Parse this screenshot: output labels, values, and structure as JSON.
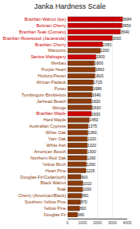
{
  "chart_data": {
    "type": "bar",
    "orientation": "horizontal",
    "title": "Janka Hardness Scale",
    "categories": [
      "Brazilian Walnut (Ipe)",
      "Bolivian Cherry",
      "Brazilian Teak (Cumaru)",
      "Brazilian Rosewood (Jacaranda)",
      "Brazilian Cherry",
      "Mancono",
      "Santos Mahogany",
      "Merbau",
      "Purple Heart",
      "Hickory/Pecan",
      "African Padauk",
      "Purau",
      "Tumbingum Bimblebox",
      "Jarhead Beach",
      "Wenge",
      "Brazilian Maple",
      "Hard Maple",
      "Australian Cypress",
      "White Oak",
      "Yam Oak",
      "White Ash",
      "American Beech",
      "Northern Red Oak",
      "Yellow Birch",
      "Heart Pine",
      "Douglas-Fir/Cedar(soft)",
      "Black Walnut",
      "Teak",
      "Cherry (American/Black)",
      "Southern Yellow Pine",
      "Yellow Pine",
      "Douglas Fir"
    ],
    "values": [
      3684,
      3650,
      3540,
      3000,
      2350,
      2200,
      1900,
      1800,
      1860,
      1820,
      1725,
      1686,
      1640,
      1600,
      1630,
      1600,
      1450,
      1375,
      1360,
      1320,
      1320,
      1300,
      1290,
      1260,
      1225,
      900,
      1010,
      1000,
      950,
      870,
      800,
      660
    ],
    "colors": [
      "#cc0000",
      "#cc0000",
      "#cc0000",
      "#cc0000",
      "#cc0000",
      "#8B3A0A",
      "#cc0000",
      "#8B3A0A",
      "#8B3A0A",
      "#8B3A0A",
      "#8B3A0A",
      "#8B3A0A",
      "#8B3A0A",
      "#8B3A0A",
      "#8B3A0A",
      "#cc0000",
      "#8B3A0A",
      "#8B3A0A",
      "#8B3A0A",
      "#8B3A0A",
      "#8B3A0A",
      "#8B3A0A",
      "#8B3A0A",
      "#8B3A0A",
      "#8B3A0A",
      "#8B3A0A",
      "#8B3A0A",
      "#8B3A0A",
      "#8B3A0A",
      "#8B3A0A",
      "#8B3A0A",
      "#8B3A0A"
    ],
    "xlim": [
      0,
      4000
    ],
    "xticks": [
      0,
      1000,
      2000,
      3000,
      4000
    ],
    "grid": true,
    "data_labels": true
  }
}
